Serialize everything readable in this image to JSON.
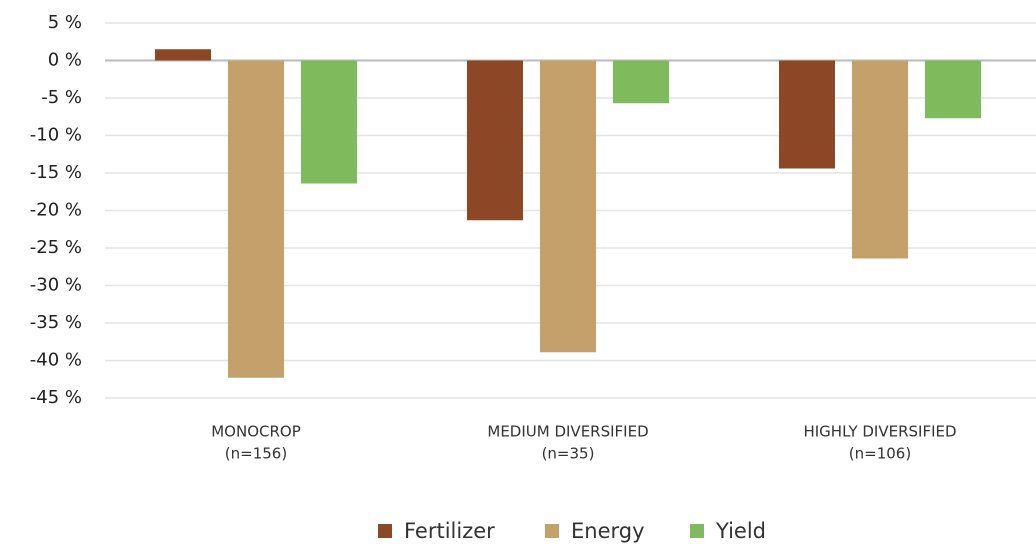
{
  "chart_data": {
    "type": "bar",
    "categories": [
      "MONOCROP",
      "MEDIUM DIVERSIFIED",
      "HIGHLY DIVERSIFIED"
    ],
    "category_counts": [
      "(n=156)",
      "(n=35)",
      "(n=106)"
    ],
    "series": [
      {
        "name": "Fertilizer",
        "color": "#8b4726",
        "values": [
          1.5,
          -21.3,
          -14.4
        ]
      },
      {
        "name": "Energy",
        "color": "#c4a06b",
        "values": [
          -42.3,
          -38.9,
          -26.4
        ]
      },
      {
        "name": "Yield",
        "color": "#7fba5c",
        "values": [
          -16.4,
          -5.7,
          -7.7
        ]
      }
    ],
    "ylim": [
      -45,
      5
    ],
    "yticks": [
      {
        "value": 5,
        "label": "5 %"
      },
      {
        "value": 0,
        "label": "0 %"
      },
      {
        "value": -5,
        "label": "-5 %"
      },
      {
        "value": -10,
        "label": "-10 %"
      },
      {
        "value": -15,
        "label": "-15 %"
      },
      {
        "value": -20,
        "label": "-20 %"
      },
      {
        "value": -25,
        "label": "-25 %"
      },
      {
        "value": -30,
        "label": "-30 %"
      },
      {
        "value": -35,
        "label": "-35 %"
      },
      {
        "value": -40,
        "label": "-40 %"
      },
      {
        "value": -45,
        "label": "-45 %"
      }
    ],
    "grid": true,
    "legend": "bottom"
  }
}
